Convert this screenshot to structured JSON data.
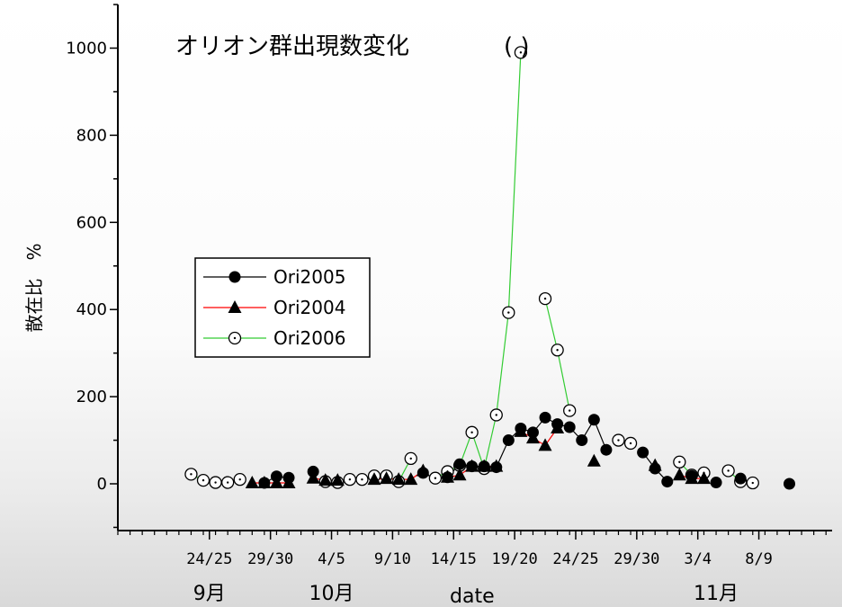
{
  "chart_data": {
    "type": "line",
    "title": "オリオン群出現数変化",
    "annotation": "( )",
    "xlabel": "date",
    "ylabel": "散在比　%",
    "ylim": [
      -100,
      1100
    ],
    "yticks": [
      0,
      200,
      400,
      600,
      800,
      1000
    ],
    "x_tick_labels": [
      "24/25",
      "29/30",
      "4/5",
      "9/10",
      "14/15",
      "19/20",
      "24/25",
      "29/30",
      "3/4",
      "8/9"
    ],
    "x_tick_positions": [
      24.5,
      29.5,
      34.5,
      39.5,
      44.5,
      49.5,
      54.5,
      59.5,
      64.5,
      69.5
    ],
    "month_labels": [
      {
        "label": "9月",
        "x": 24.5
      },
      {
        "label": "10月",
        "x": 34.5
      },
      {
        "label": "11月",
        "x": 66
      }
    ],
    "xlim": [
      17,
      75.5
    ],
    "x_units": "day number counted from 1 September",
    "legend": "left-middle",
    "series": [
      {
        "name": "Ori2005",
        "color": "#000000",
        "marker": "circle",
        "segments": [
          [
            [
              29,
              2
            ],
            [
              30,
              17
            ],
            [
              31,
              14
            ]
          ],
          [
            [
              33,
              28
            ]
          ],
          [
            [
              42,
              25
            ]
          ],
          [
            [
              44,
              15
            ],
            [
              45,
              45
            ],
            [
              46,
              40
            ],
            [
              47,
              40
            ],
            [
              48,
              38
            ],
            [
              49,
              100
            ],
            [
              50,
              127
            ],
            [
              51,
              118
            ],
            [
              52,
              152
            ],
            [
              53,
              137
            ],
            [
              54,
              130
            ],
            [
              55,
              100
            ],
            [
              56,
              147
            ],
            [
              57,
              78
            ]
          ],
          [
            [
              60,
              72
            ],
            [
              61,
              35
            ],
            [
              62,
              5
            ]
          ],
          [
            [
              64,
              18
            ]
          ],
          [
            [
              66,
              3
            ]
          ],
          [
            [
              68,
              12
            ]
          ],
          [
            [
              72,
              0
            ]
          ]
        ]
      },
      {
        "name": "Ori2004",
        "color": "#ff0000",
        "marker": "triangle",
        "segments": [
          [
            [
              28,
              2
            ],
            [
              29,
              2
            ],
            [
              30,
              2
            ],
            [
              31,
              2
            ]
          ],
          [
            [
              33,
              13
            ],
            [
              34,
              8
            ],
            [
              35,
              8
            ]
          ],
          [
            [
              38,
              10
            ],
            [
              39,
              12
            ],
            [
              40,
              10
            ],
            [
              41,
              10
            ],
            [
              42,
              30
            ]
          ],
          [
            [
              44,
              15
            ],
            [
              45,
              20
            ],
            [
              46,
              40
            ],
            [
              47,
              40
            ],
            [
              48,
              40
            ]
          ],
          [
            [
              50,
              120
            ],
            [
              51,
              105
            ],
            [
              52,
              88
            ],
            [
              53,
              128
            ]
          ],
          [
            [
              56,
              52
            ]
          ],
          [
            [
              61,
              42
            ]
          ],
          [
            [
              63,
              20
            ],
            [
              64,
              12
            ],
            [
              65,
              12
            ]
          ]
        ]
      },
      {
        "name": "Ori2006",
        "color": "#33cc33",
        "marker": "dot-circle",
        "segments": [
          [
            [
              23,
              22
            ],
            [
              24,
              8
            ],
            [
              25,
              3
            ],
            [
              26,
              3
            ],
            [
              27,
              10
            ]
          ],
          [
            [
              34,
              5
            ],
            [
              35,
              3
            ],
            [
              36,
              10
            ],
            [
              37,
              10
            ],
            [
              38,
              18
            ],
            [
              39,
              18
            ],
            [
              40,
              5
            ],
            [
              41,
              58
            ]
          ],
          [
            [
              43,
              13
            ],
            [
              44,
              28
            ],
            [
              45,
              42
            ],
            [
              46,
              118
            ],
            [
              47,
              35
            ],
            [
              48,
              158
            ],
            [
              49,
              393
            ],
            [
              50,
              990
            ]
          ],
          [
            [
              52,
              425
            ],
            [
              53,
              307
            ],
            [
              54,
              168
            ]
          ],
          [
            [
              58,
              100
            ],
            [
              59,
              93
            ]
          ],
          [
            [
              63,
              50
            ],
            [
              64,
              20
            ],
            [
              65,
              25
            ]
          ],
          [
            [
              67,
              30
            ],
            [
              68,
              5
            ],
            [
              69,
              2
            ]
          ]
        ]
      }
    ]
  }
}
